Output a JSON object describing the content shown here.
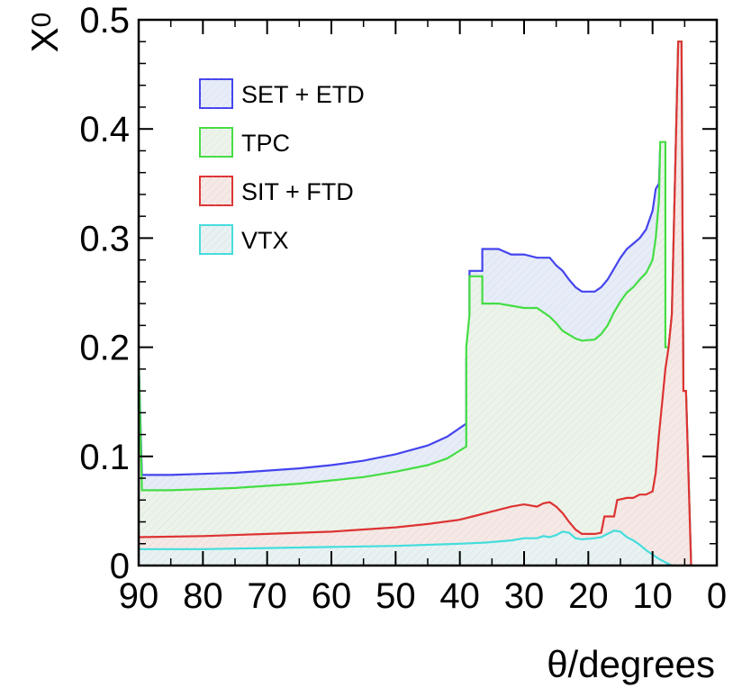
{
  "chart_data": {
    "type": "area",
    "xlabel": "θ/degrees",
    "ylabel": "X",
    "ylabel_subscript": "0",
    "xlim": [
      90,
      0
    ],
    "ylim": [
      0,
      0.5
    ],
    "x_ticks": [
      90,
      80,
      70,
      60,
      50,
      40,
      30,
      20,
      10,
      0
    ],
    "y_ticks": [
      0,
      0.1,
      0.2,
      0.3,
      0.4,
      0.5
    ],
    "y_tick_labels": [
      "0",
      "0.1",
      "0.2",
      "0.3",
      "0.4",
      "0.5"
    ],
    "legend_position": "top-left",
    "grid": false,
    "series": [
      {
        "name": "SET + ETD",
        "color": "#4444ee",
        "fill": "#e6ecf8",
        "points": [
          [
            90,
            0.19
          ],
          [
            89.5,
            0.083
          ],
          [
            85,
            0.083
          ],
          [
            80,
            0.084
          ],
          [
            75,
            0.085
          ],
          [
            70,
            0.087
          ],
          [
            65,
            0.089
          ],
          [
            60,
            0.092
          ],
          [
            55,
            0.096
          ],
          [
            50,
            0.102
          ],
          [
            45,
            0.11
          ],
          [
            42,
            0.118
          ],
          [
            39,
            0.13
          ],
          [
            39,
            0.19
          ],
          [
            38.5,
            0.2
          ],
          [
            38.5,
            0.27
          ],
          [
            36.5,
            0.27
          ],
          [
            36.5,
            0.29
          ],
          [
            34,
            0.29
          ],
          [
            32,
            0.285
          ],
          [
            30,
            0.285
          ],
          [
            28,
            0.282
          ],
          [
            26,
            0.282
          ],
          [
            25,
            0.275
          ],
          [
            24,
            0.27
          ],
          [
            23,
            0.262
          ],
          [
            22,
            0.255
          ],
          [
            21,
            0.251
          ],
          [
            19,
            0.251
          ],
          [
            18,
            0.255
          ],
          [
            17,
            0.262
          ],
          [
            16,
            0.272
          ],
          [
            15,
            0.282
          ],
          [
            14,
            0.29
          ],
          [
            13,
            0.295
          ],
          [
            12,
            0.3
          ],
          [
            11,
            0.308
          ],
          [
            10,
            0.325
          ],
          [
            9.5,
            0.345
          ],
          [
            9,
            0.35
          ],
          [
            8.8,
            0.385
          ],
          [
            8,
            0.385
          ],
          [
            8,
            0.2
          ],
          [
            7.5,
            0.2
          ],
          [
            7,
            0.23
          ],
          [
            6,
            0.48
          ],
          [
            5.5,
            0.48
          ],
          [
            5.2,
            0.16
          ],
          [
            4.8,
            0.16
          ],
          [
            4,
            0
          ]
        ]
      },
      {
        "name": "TPC",
        "color": "#44dd44",
        "fill": "#ecf4ea",
        "points": [
          [
            90,
            0.19
          ],
          [
            89.5,
            0.069
          ],
          [
            85,
            0.069
          ],
          [
            80,
            0.07
          ],
          [
            75,
            0.071
          ],
          [
            70,
            0.073
          ],
          [
            65,
            0.075
          ],
          [
            60,
            0.078
          ],
          [
            55,
            0.081
          ],
          [
            50,
            0.086
          ],
          [
            45,
            0.092
          ],
          [
            42,
            0.098
          ],
          [
            39,
            0.109
          ],
          [
            39,
            0.2
          ],
          [
            38.5,
            0.23
          ],
          [
            38.5,
            0.265
          ],
          [
            36.5,
            0.265
          ],
          [
            36.5,
            0.24
          ],
          [
            34,
            0.24
          ],
          [
            32,
            0.238
          ],
          [
            30,
            0.236
          ],
          [
            28,
            0.236
          ],
          [
            27,
            0.232
          ],
          [
            26,
            0.228
          ],
          [
            25,
            0.222
          ],
          [
            24,
            0.215
          ],
          [
            22,
            0.208
          ],
          [
            21,
            0.206
          ],
          [
            19,
            0.207
          ],
          [
            18,
            0.212
          ],
          [
            17,
            0.22
          ],
          [
            16,
            0.232
          ],
          [
            15,
            0.242
          ],
          [
            14,
            0.25
          ],
          [
            13,
            0.255
          ],
          [
            12,
            0.262
          ],
          [
            11,
            0.268
          ],
          [
            10,
            0.28
          ],
          [
            9.5,
            0.3
          ],
          [
            9,
            0.335
          ],
          [
            8.8,
            0.388
          ],
          [
            8,
            0.388
          ],
          [
            8,
            0.2
          ],
          [
            7.5,
            0.2
          ],
          [
            7,
            0.23
          ],
          [
            6,
            0.48
          ],
          [
            5.5,
            0.48
          ],
          [
            5.2,
            0.16
          ],
          [
            4.8,
            0.16
          ],
          [
            4,
            0
          ]
        ]
      },
      {
        "name": "SIT + FTD",
        "color": "#dd3333",
        "fill": "#f6e8e4",
        "points": [
          [
            90,
            0.026
          ],
          [
            80,
            0.027
          ],
          [
            70,
            0.029
          ],
          [
            60,
            0.031
          ],
          [
            50,
            0.035
          ],
          [
            45,
            0.038
          ],
          [
            40,
            0.042
          ],
          [
            38,
            0.045
          ],
          [
            36,
            0.048
          ],
          [
            34,
            0.051
          ],
          [
            32,
            0.054
          ],
          [
            30,
            0.056
          ],
          [
            28,
            0.054
          ],
          [
            27,
            0.057
          ],
          [
            26,
            0.058
          ],
          [
            25,
            0.054
          ],
          [
            24,
            0.048
          ],
          [
            23,
            0.04
          ],
          [
            22,
            0.033
          ],
          [
            21,
            0.029
          ],
          [
            19,
            0.029
          ],
          [
            18,
            0.03
          ],
          [
            17.5,
            0.045
          ],
          [
            16,
            0.045
          ],
          [
            15.5,
            0.06
          ],
          [
            14,
            0.062
          ],
          [
            13,
            0.062
          ],
          [
            12,
            0.065
          ],
          [
            11,
            0.065
          ],
          [
            10,
            0.068
          ],
          [
            9.5,
            0.085
          ],
          [
            9,
            0.12
          ],
          [
            8.5,
            0.15
          ],
          [
            8,
            0.18
          ],
          [
            7.5,
            0.2
          ],
          [
            7,
            0.23
          ],
          [
            6,
            0.48
          ],
          [
            5.5,
            0.48
          ],
          [
            5.2,
            0.16
          ],
          [
            4.8,
            0.16
          ],
          [
            4,
            0
          ]
        ]
      },
      {
        "name": "VTX",
        "color": "#44dddd",
        "fill": "#e8f2f2",
        "points": [
          [
            90,
            0.015
          ],
          [
            80,
            0.015
          ],
          [
            70,
            0.016
          ],
          [
            60,
            0.017
          ],
          [
            50,
            0.018
          ],
          [
            40,
            0.02
          ],
          [
            36,
            0.021
          ],
          [
            32,
            0.023
          ],
          [
            30,
            0.025
          ],
          [
            28,
            0.025
          ],
          [
            27,
            0.027
          ],
          [
            26,
            0.026
          ],
          [
            25,
            0.028
          ],
          [
            24,
            0.031
          ],
          [
            23,
            0.03
          ],
          [
            22,
            0.025
          ],
          [
            21,
            0.024
          ],
          [
            19,
            0.025
          ],
          [
            18,
            0.026
          ],
          [
            17,
            0.029
          ],
          [
            16,
            0.032
          ],
          [
            15,
            0.031
          ],
          [
            14,
            0.026
          ],
          [
            13,
            0.023
          ],
          [
            12,
            0.019
          ],
          [
            11,
            0.014
          ],
          [
            10,
            0.01
          ],
          [
            9,
            0.006
          ],
          [
            8,
            0.003
          ],
          [
            7,
            0
          ]
        ]
      }
    ]
  }
}
